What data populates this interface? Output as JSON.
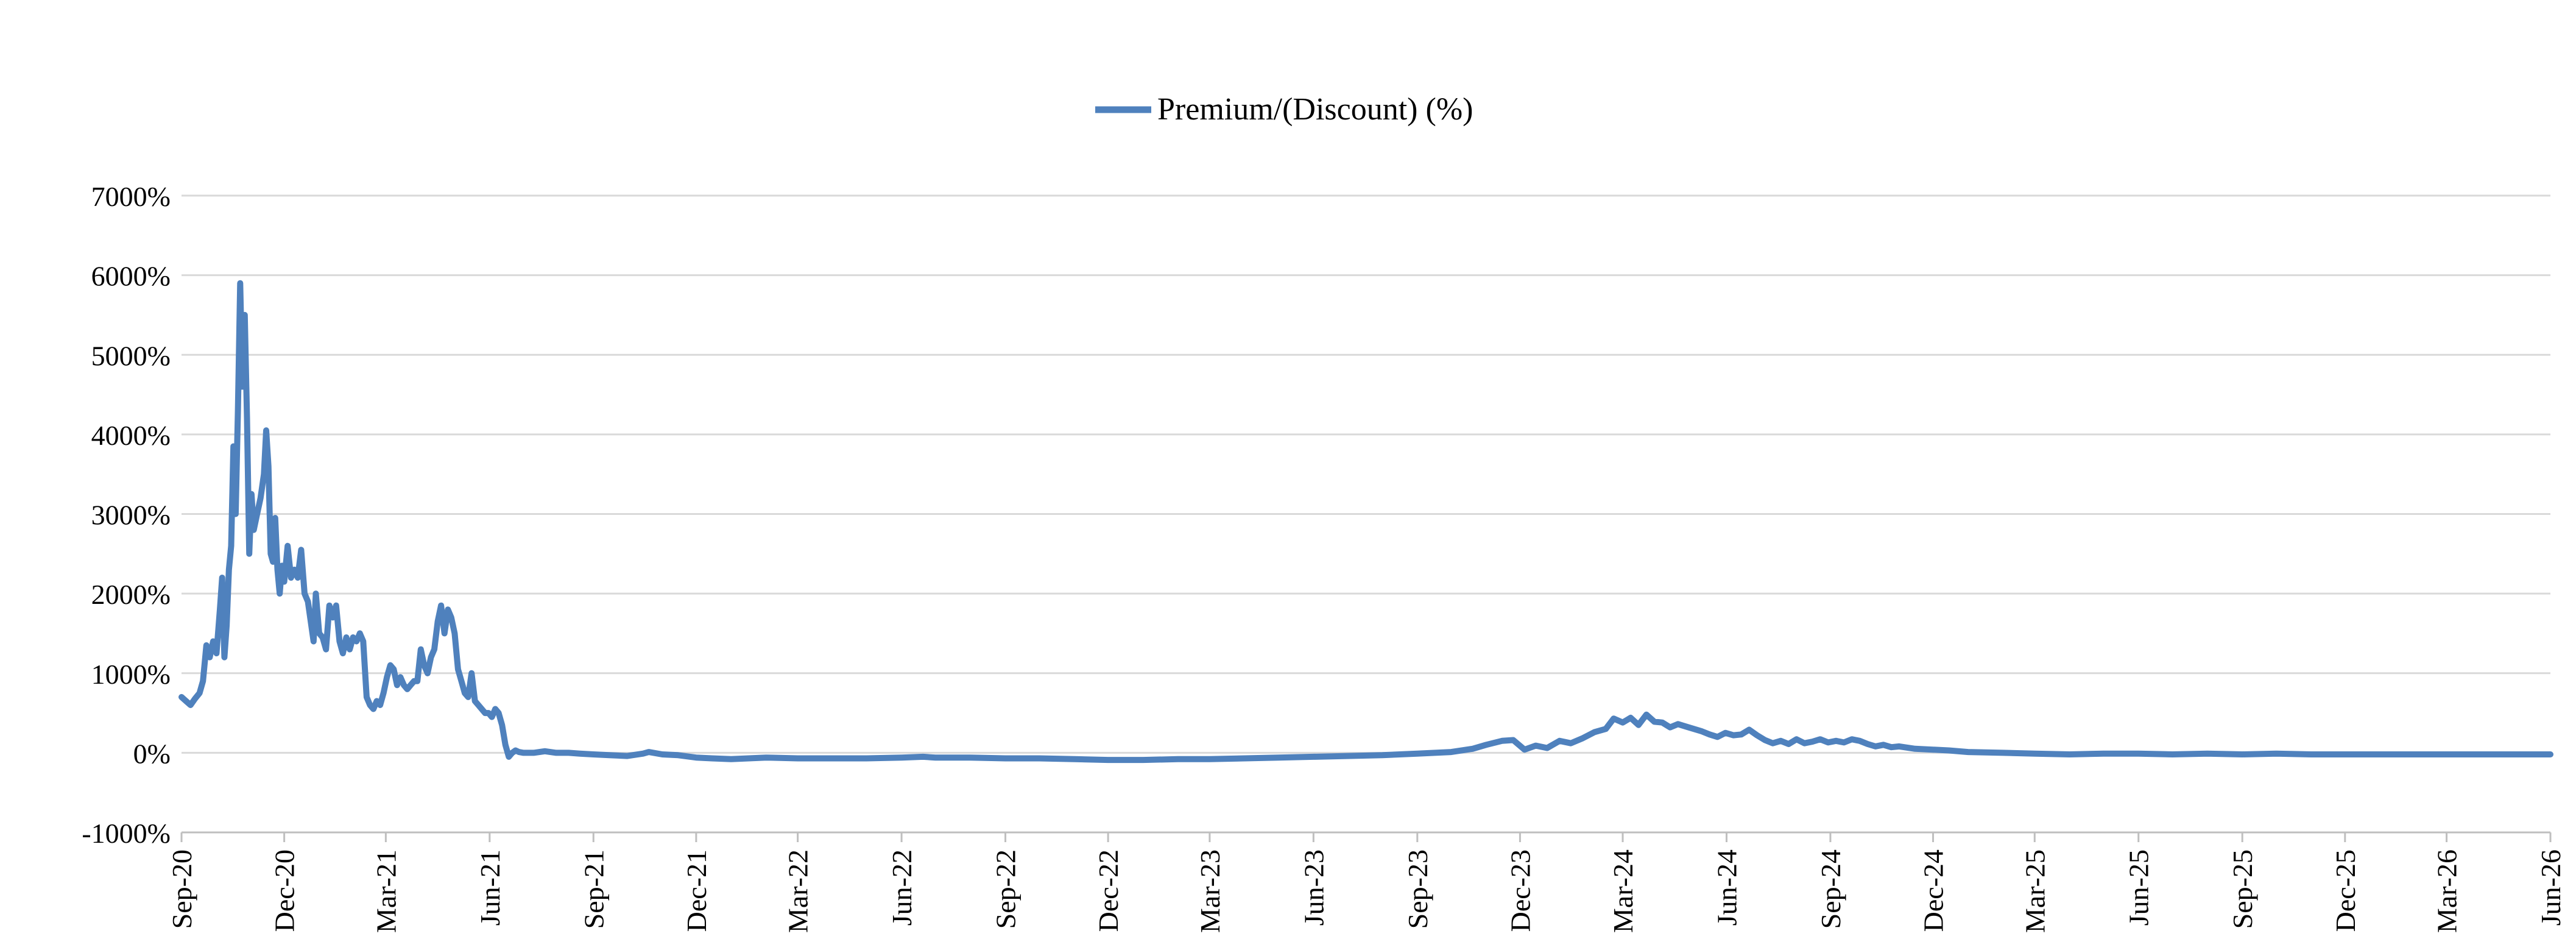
{
  "chart_data": {
    "type": "line",
    "title": "",
    "xlabel": "",
    "ylabel": "",
    "ylim": [
      -1000,
      7000
    ],
    "y_ticks": [
      -1000,
      0,
      1000,
      2000,
      3000,
      4000,
      5000,
      6000,
      7000
    ],
    "y_tick_labels": [
      "-1000%",
      "0%",
      "1000%",
      "2000%",
      "3000%",
      "4000%",
      "5000%",
      "6000%",
      "7000%"
    ],
    "x_range": [
      "2020-09-01",
      "2026-06-01"
    ],
    "x_ticks": [
      "2020-09-01",
      "2020-12-01",
      "2021-03-01",
      "2021-06-01",
      "2021-09-01",
      "2021-12-01",
      "2022-03-01",
      "2022-06-01",
      "2022-09-01",
      "2022-12-01",
      "2023-03-01",
      "2023-06-01",
      "2023-09-01",
      "2023-12-01",
      "2024-03-01",
      "2024-06-01",
      "2024-09-01",
      "2024-12-01",
      "2025-03-01",
      "2025-06-01",
      "2025-09-01",
      "2025-12-01",
      "2026-03-01",
      "2026-06-01"
    ],
    "x_tick_labels": [
      "Sep-20",
      "Dec-20",
      "Mar-21",
      "Jun-21",
      "Sep-21",
      "Dec-21",
      "Mar-22",
      "Jun-22",
      "Sep-22",
      "Dec-22",
      "Mar-23",
      "Jun-23",
      "Sep-23",
      "Dec-23",
      "Mar-24",
      "Jun-24",
      "Sep-24",
      "Dec-24",
      "Mar-25",
      "Jun-25",
      "Sep-25",
      "Dec-25",
      "Mar-26",
      "Jun-26"
    ],
    "grid": true,
    "legend_position": "top-center",
    "series": [
      {
        "name": "Premium/(Discount) (%)",
        "color": "#4f81bd",
        "points": [
          [
            "2020-09-01",
            700
          ],
          [
            "2020-09-05",
            650
          ],
          [
            "2020-09-09",
            600
          ],
          [
            "2020-09-13",
            680
          ],
          [
            "2020-09-17",
            750
          ],
          [
            "2020-09-20",
            900
          ],
          [
            "2020-09-23",
            1350
          ],
          [
            "2020-09-26",
            1200
          ],
          [
            "2020-09-29",
            1400
          ],
          [
            "2020-10-02",
            1250
          ],
          [
            "2020-10-05",
            1800
          ],
          [
            "2020-10-07",
            2200
          ],
          [
            "2020-10-09",
            1200
          ],
          [
            "2020-10-11",
            1600
          ],
          [
            "2020-10-13",
            2300
          ],
          [
            "2020-10-15",
            2600
          ],
          [
            "2020-10-17",
            3850
          ],
          [
            "2020-10-19",
            3000
          ],
          [
            "2020-10-21",
            4300
          ],
          [
            "2020-10-23",
            5900
          ],
          [
            "2020-10-25",
            4600
          ],
          [
            "2020-10-27",
            5500
          ],
          [
            "2020-10-29",
            4200
          ],
          [
            "2020-10-31",
            2500
          ],
          [
            "2020-11-02",
            3250
          ],
          [
            "2020-11-04",
            2800
          ],
          [
            "2020-11-07",
            3000
          ],
          [
            "2020-11-10",
            3200
          ],
          [
            "2020-11-13",
            3500
          ],
          [
            "2020-11-15",
            4050
          ],
          [
            "2020-11-17",
            3600
          ],
          [
            "2020-11-19",
            2500
          ],
          [
            "2020-11-21",
            2400
          ],
          [
            "2020-11-23",
            2950
          ],
          [
            "2020-11-25",
            2300
          ],
          [
            "2020-11-27",
            2000
          ],
          [
            "2020-11-29",
            2350
          ],
          [
            "2020-12-01",
            2150
          ],
          [
            "2020-12-04",
            2600
          ],
          [
            "2020-12-07",
            2200
          ],
          [
            "2020-12-10",
            2300
          ],
          [
            "2020-12-13",
            2200
          ],
          [
            "2020-12-16",
            2550
          ],
          [
            "2020-12-19",
            2000
          ],
          [
            "2020-12-22",
            1900
          ],
          [
            "2020-12-25",
            1600
          ],
          [
            "2020-12-27",
            1400
          ],
          [
            "2020-12-29",
            2000
          ],
          [
            "2021-01-01",
            1500
          ],
          [
            "2021-01-04",
            1450
          ],
          [
            "2021-01-07",
            1300
          ],
          [
            "2021-01-10",
            1850
          ],
          [
            "2021-01-13",
            1700
          ],
          [
            "2021-01-16",
            1850
          ],
          [
            "2021-01-19",
            1400
          ],
          [
            "2021-01-22",
            1250
          ],
          [
            "2021-01-25",
            1450
          ],
          [
            "2021-01-28",
            1300
          ],
          [
            "2021-01-31",
            1450
          ],
          [
            "2021-02-03",
            1400
          ],
          [
            "2021-02-06",
            1500
          ],
          [
            "2021-02-09",
            1400
          ],
          [
            "2021-02-12",
            700
          ],
          [
            "2021-02-15",
            600
          ],
          [
            "2021-02-18",
            550
          ],
          [
            "2021-02-21",
            650
          ],
          [
            "2021-02-24",
            600
          ],
          [
            "2021-02-27",
            750
          ],
          [
            "2021-03-02",
            950
          ],
          [
            "2021-03-05",
            1100
          ],
          [
            "2021-03-08",
            1050
          ],
          [
            "2021-03-11",
            850
          ],
          [
            "2021-03-14",
            950
          ],
          [
            "2021-03-17",
            850
          ],
          [
            "2021-03-20",
            800
          ],
          [
            "2021-03-23",
            850
          ],
          [
            "2021-03-26",
            900
          ],
          [
            "2021-03-29",
            900
          ],
          [
            "2021-04-01",
            1300
          ],
          [
            "2021-04-04",
            1100
          ],
          [
            "2021-04-07",
            1000
          ],
          [
            "2021-04-10",
            1200
          ],
          [
            "2021-04-13",
            1300
          ],
          [
            "2021-04-16",
            1650
          ],
          [
            "2021-04-19",
            1850
          ],
          [
            "2021-04-22",
            1500
          ],
          [
            "2021-04-25",
            1800
          ],
          [
            "2021-04-28",
            1700
          ],
          [
            "2021-05-01",
            1500
          ],
          [
            "2021-05-04",
            1050
          ],
          [
            "2021-05-07",
            900
          ],
          [
            "2021-05-10",
            750
          ],
          [
            "2021-05-13",
            700
          ],
          [
            "2021-05-16",
            1000
          ],
          [
            "2021-05-19",
            650
          ],
          [
            "2021-05-22",
            600
          ],
          [
            "2021-05-25",
            550
          ],
          [
            "2021-05-28",
            500
          ],
          [
            "2021-05-31",
            500
          ],
          [
            "2021-06-03",
            450
          ],
          [
            "2021-06-06",
            550
          ],
          [
            "2021-06-09",
            500
          ],
          [
            "2021-06-12",
            350
          ],
          [
            "2021-06-15",
            100
          ],
          [
            "2021-06-18",
            -50
          ],
          [
            "2021-06-21",
            0
          ],
          [
            "2021-06-24",
            30
          ],
          [
            "2021-06-27",
            10
          ],
          [
            "2021-07-01",
            0
          ],
          [
            "2021-07-10",
            0
          ],
          [
            "2021-07-20",
            20
          ],
          [
            "2021-07-30",
            0
          ],
          [
            "2021-08-10",
            0
          ],
          [
            "2021-08-20",
            -10
          ],
          [
            "2021-09-01",
            -20
          ],
          [
            "2021-09-15",
            -30
          ],
          [
            "2021-10-01",
            -40
          ],
          [
            "2021-10-15",
            -10
          ],
          [
            "2021-10-20",
            10
          ],
          [
            "2021-11-01",
            -20
          ],
          [
            "2021-11-15",
            -30
          ],
          [
            "2021-12-01",
            -60
          ],
          [
            "2021-12-15",
            -70
          ],
          [
            "2022-01-01",
            -80
          ],
          [
            "2022-02-01",
            -60
          ],
          [
            "2022-03-01",
            -70
          ],
          [
            "2022-04-01",
            -70
          ],
          [
            "2022-05-01",
            -70
          ],
          [
            "2022-06-01",
            -60
          ],
          [
            "2022-06-20",
            -50
          ],
          [
            "2022-07-01",
            -60
          ],
          [
            "2022-08-01",
            -60
          ],
          [
            "2022-09-01",
            -70
          ],
          [
            "2022-10-01",
            -70
          ],
          [
            "2022-11-01",
            -80
          ],
          [
            "2022-12-01",
            -90
          ],
          [
            "2023-01-01",
            -90
          ],
          [
            "2023-02-01",
            -80
          ],
          [
            "2023-03-01",
            -80
          ],
          [
            "2023-04-01",
            -70
          ],
          [
            "2023-05-01",
            -60
          ],
          [
            "2023-06-01",
            -50
          ],
          [
            "2023-07-01",
            -40
          ],
          [
            "2023-08-01",
            -30
          ],
          [
            "2023-09-01",
            -10
          ],
          [
            "2023-10-01",
            10
          ],
          [
            "2023-10-20",
            50
          ],
          [
            "2023-11-01",
            100
          ],
          [
            "2023-11-15",
            150
          ],
          [
            "2023-11-25",
            160
          ],
          [
            "2023-12-05",
            40
          ],
          [
            "2023-12-15",
            90
          ],
          [
            "2023-12-25",
            60
          ],
          [
            "2024-01-05",
            150
          ],
          [
            "2024-01-15",
            120
          ],
          [
            "2024-01-25",
            180
          ],
          [
            "2024-02-05",
            260
          ],
          [
            "2024-02-15",
            300
          ],
          [
            "2024-02-22",
            430
          ],
          [
            "2024-03-01",
            380
          ],
          [
            "2024-03-08",
            440
          ],
          [
            "2024-03-15",
            350
          ],
          [
            "2024-03-22",
            480
          ],
          [
            "2024-03-29",
            390
          ],
          [
            "2024-04-05",
            380
          ],
          [
            "2024-04-12",
            320
          ],
          [
            "2024-04-19",
            360
          ],
          [
            "2024-04-26",
            330
          ],
          [
            "2024-05-03",
            300
          ],
          [
            "2024-05-10",
            270
          ],
          [
            "2024-05-17",
            230
          ],
          [
            "2024-05-24",
            200
          ],
          [
            "2024-05-31",
            250
          ],
          [
            "2024-06-07",
            220
          ],
          [
            "2024-06-14",
            230
          ],
          [
            "2024-06-21",
            290
          ],
          [
            "2024-06-28",
            220
          ],
          [
            "2024-07-05",
            160
          ],
          [
            "2024-07-12",
            120
          ],
          [
            "2024-07-19",
            150
          ],
          [
            "2024-07-26",
            110
          ],
          [
            "2024-08-02",
            170
          ],
          [
            "2024-08-09",
            120
          ],
          [
            "2024-08-16",
            140
          ],
          [
            "2024-08-23",
            170
          ],
          [
            "2024-08-30",
            130
          ],
          [
            "2024-09-06",
            150
          ],
          [
            "2024-09-13",
            130
          ],
          [
            "2024-09-20",
            170
          ],
          [
            "2024-09-27",
            150
          ],
          [
            "2024-10-04",
            110
          ],
          [
            "2024-10-11",
            80
          ],
          [
            "2024-10-18",
            100
          ],
          [
            "2024-10-25",
            70
          ],
          [
            "2024-11-01",
            80
          ],
          [
            "2024-11-15",
            50
          ],
          [
            "2024-12-01",
            40
          ],
          [
            "2024-12-15",
            30
          ],
          [
            "2025-01-01",
            10
          ],
          [
            "2025-02-01",
            0
          ],
          [
            "2025-03-01",
            -10
          ],
          [
            "2025-04-01",
            -20
          ],
          [
            "2025-05-01",
            -10
          ],
          [
            "2025-06-01",
            -10
          ],
          [
            "2025-07-01",
            -20
          ],
          [
            "2025-08-01",
            -10
          ],
          [
            "2025-09-01",
            -20
          ],
          [
            "2025-10-01",
            -10
          ],
          [
            "2025-11-01",
            -20
          ],
          [
            "2025-12-01",
            -20
          ],
          [
            "2026-01-01",
            -20
          ],
          [
            "2026-02-01",
            -20
          ],
          [
            "2026-03-01",
            -20
          ],
          [
            "2026-04-01",
            -20
          ],
          [
            "2026-05-01",
            -20
          ],
          [
            "2026-06-01",
            -20
          ]
        ]
      }
    ]
  },
  "colors": {
    "series": "#4f81bd",
    "grid": "#d9d9d9",
    "axis": "#bfbfbf",
    "text": "#000000"
  }
}
